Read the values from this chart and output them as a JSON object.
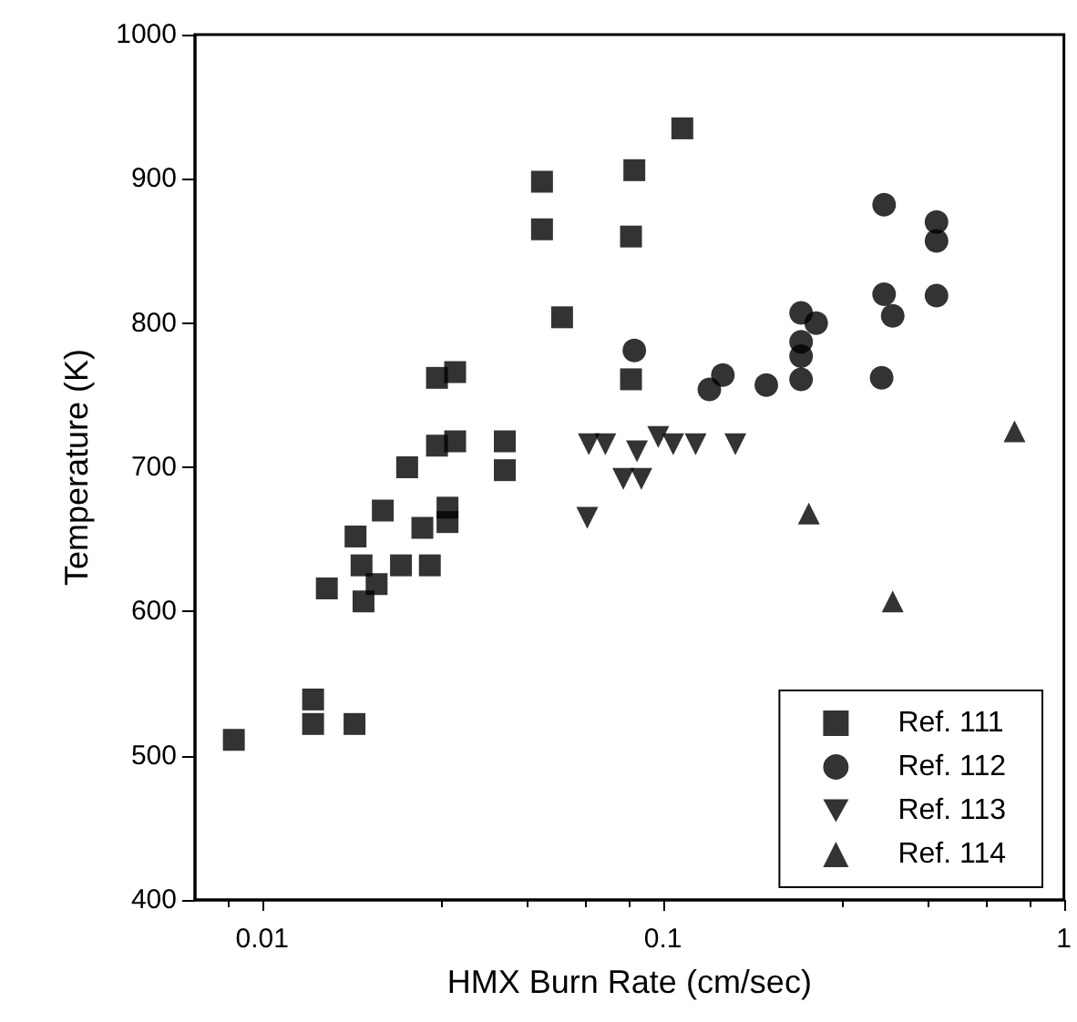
{
  "chart_data": {
    "type": "scatter",
    "xlabel": "HMX Burn Rate (cm/sec)",
    "ylabel": "Temperature (K)",
    "log": "x",
    "xlim": [
      0.0068,
      1
    ],
    "xticks": [
      0.01,
      0.1,
      1
    ],
    "ylim": [
      400,
      1000
    ],
    "yticks": [
      400,
      500,
      600,
      700,
      800,
      900,
      1000
    ],
    "grid": false,
    "legend": "bottom right",
    "series": [
      {
        "name": "Ref. 111",
        "color": "#000000",
        "marker": "square",
        "x": [
          0.0499,
          0.0499,
          0.056,
          0.0273,
          0.0303,
          0.0273,
          0.0303,
          0.0403,
          0.0403,
          0.023,
          0.02,
          0.029,
          0.029,
          0.0171,
          0.0251,
          0.0177,
          0.0222,
          0.0262,
          0.0193,
          0.0145,
          0.0179,
          0.0134,
          0.0134,
          0.017,
          0.0085,
          0.1117,
          0.0848,
          0.0832,
          0.0832
        ],
        "values": [
          898,
          865,
          804,
          762,
          766,
          715,
          718,
          718,
          698,
          700,
          670,
          672,
          662,
          652,
          658,
          632,
          632,
          632,
          619,
          616,
          607,
          539,
          522,
          522,
          511,
          935,
          906,
          860,
          761
        ]
      },
      {
        "name": "Ref. 112",
        "color": "#000000",
        "marker": "circle",
        "x": [
          0.0848,
          0.1305,
          0.141,
          0.181,
          0.221,
          0.241,
          0.221,
          0.221,
          0.221,
          0.356,
          0.356,
          0.374,
          0.351,
          0.481,
          0.481,
          0.481
        ],
        "values": [
          781,
          754,
          764,
          757,
          807,
          800,
          787,
          777,
          761,
          882,
          820,
          805,
          762,
          870,
          857,
          819
        ]
      },
      {
        "name": "Ref. 113",
        "color": "#000000",
        "marker": "triangle-down",
        "x": [
          0.0653,
          0.0718,
          0.0647,
          0.0796,
          0.0883,
          0.0861,
          0.0973,
          0.106,
          0.1206,
          0.1515
        ],
        "values": [
          716,
          716,
          665,
          692,
          692,
          711,
          721,
          716,
          716,
          716
        ]
      },
      {
        "name": "Ref. 114",
        "color": "#000000",
        "marker": "triangle",
        "x": [
          0.753,
          0.231,
          0.374
        ],
        "values": [
          725,
          668,
          607
        ]
      }
    ]
  }
}
